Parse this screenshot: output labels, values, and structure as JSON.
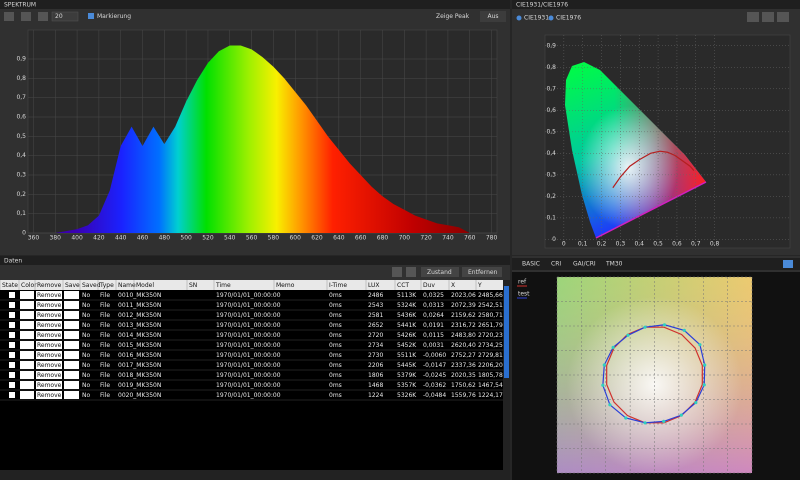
{
  "spectrum_panel": {
    "title": "SPEKTRUM",
    "count": "20",
    "marker": "Markierung",
    "peak_label": "Zeige Peak",
    "peak_value": "Aus"
  },
  "cie_panel": {
    "title": "CIE1931/CIE1976",
    "tabs": [
      "CIE1931",
      "CIE1976"
    ]
  },
  "data_panel": {
    "title": "Daten",
    "buttons": [
      "Zustand",
      "Entfernen"
    ],
    "table": {
      "columns": [
        "State",
        "Color",
        "Remove",
        "Save",
        "Saved",
        "Type",
        "Name",
        "Model",
        "SN",
        "Time",
        "Memo",
        "I-Time",
        "LUX",
        "CCT",
        "Duv",
        "X",
        "Y"
      ],
      "rows": [
        [
          "Remove",
          "No",
          "File",
          "0010_MK350N",
          "1970/01/01_00:00:00",
          "0ms",
          "2486",
          "5113K",
          "0,0325",
          "2023,06",
          "2485,66"
        ],
        [
          "Remove",
          "No",
          "File",
          "0011_MK350N",
          "1970/01/01_00:00:00",
          "0ms",
          "2543",
          "5324K",
          "0,0313",
          "2072,39",
          "2542,51"
        ],
        [
          "Remove",
          "No",
          "File",
          "0012_MK350N",
          "1970/01/01_00:00:00",
          "0ms",
          "2581",
          "5436K",
          "0,0264",
          "2159,62",
          "2580,71"
        ],
        [
          "Remove",
          "No",
          "File",
          "0013_MK350N",
          "1970/01/01_00:00:00",
          "0ms",
          "2652",
          "5441K",
          "0,0191",
          "2316,72",
          "2651,79"
        ],
        [
          "Remove",
          "No",
          "File",
          "0014_MK350N",
          "1970/01/01_00:00:00",
          "0ms",
          "2720",
          "5426K",
          "0,0115",
          "2483,80",
          "2720,23"
        ],
        [
          "Remove",
          "No",
          "File",
          "0015_MK350N",
          "1970/01/01_00:00:00",
          "0ms",
          "2734",
          "5452K",
          "0,0031",
          "2620,40",
          "2734,25"
        ],
        [
          "Remove",
          "No",
          "File",
          "0016_MK350N",
          "1970/01/01_00:00:00",
          "0ms",
          "2730",
          "5511K",
          "-0,0060",
          "2752,27",
          "2729,81"
        ],
        [
          "Remove",
          "No",
          "File",
          "0017_MK350N",
          "1970/01/01_00:00:00",
          "0ms",
          "2206",
          "5445K",
          "-0,0147",
          "2337,36",
          "2206,20"
        ],
        [
          "Remove",
          "No",
          "File",
          "0018_MK350N",
          "1970/01/01_00:00:00",
          "0ms",
          "1806",
          "5379K",
          "-0,0245",
          "2020,35",
          "1805,78"
        ],
        [
          "Remove",
          "No",
          "File",
          "0019_MK350N",
          "1970/01/01_00:00:00",
          "0ms",
          "1468",
          "5357K",
          "-0,0362",
          "1750,62",
          "1467,54"
        ],
        [
          "Remove",
          "No",
          "File",
          "0020_MK350N",
          "1970/01/01_00:00:00",
          "0ms",
          "1224",
          "5326K",
          "-0,0484",
          "1559,76",
          "1224,17"
        ]
      ]
    }
  },
  "color_panel": {
    "tabs": [
      "BASIC",
      "CRI",
      "GAI/CRI",
      "TM30"
    ]
  },
  "chart_data": [
    {
      "type": "area",
      "x": [
        380,
        390,
        400,
        410,
        420,
        430,
        440,
        450,
        460,
        470,
        480,
        490,
        500,
        510,
        520,
        530,
        540,
        550,
        560,
        570,
        580,
        590,
        600,
        610,
        620,
        630,
        640,
        650,
        660,
        670,
        680,
        690,
        700,
        710,
        720,
        730,
        740,
        750,
        760
      ],
      "values": [
        0.0,
        0.01,
        0.02,
        0.04,
        0.09,
        0.22,
        0.45,
        0.55,
        0.45,
        0.55,
        0.46,
        0.55,
        0.68,
        0.79,
        0.88,
        0.94,
        0.97,
        0.97,
        0.95,
        0.91,
        0.86,
        0.8,
        0.73,
        0.66,
        0.58,
        0.5,
        0.43,
        0.36,
        0.3,
        0.24,
        0.19,
        0.15,
        0.12,
        0.09,
        0.07,
        0.05,
        0.04,
        0.03,
        0.0
      ],
      "xlim": [
        355,
        785
      ],
      "ylim": [
        0,
        1.05
      ],
      "xticks": [
        360,
        380,
        400,
        420,
        440,
        460,
        480,
        500,
        520,
        540,
        560,
        580,
        600,
        620,
        640,
        660,
        680,
        700,
        720,
        740,
        760,
        780
      ],
      "yticks": [
        0,
        {
          "value": 0.1,
          "label": "0,1"
        },
        {
          "value": 0.2,
          "label": "0,2"
        },
        {
          "value": 0.3,
          "label": "0,3"
        },
        {
          "value": 0.4,
          "label": "0,4"
        },
        {
          "value": 0.5,
          "label": "0,5"
        },
        {
          "value": 0.6,
          "label": "0,6"
        },
        {
          "value": 0.7,
          "label": "0,7"
        },
        {
          "value": 0.8,
          "label": "0,8"
        },
        {
          "value": 0.9,
          "label": "0,9"
        }
      ],
      "grid": true
    },
    {
      "type": "line",
      "color": "#b51f1f",
      "x": [
        0.26,
        0.3,
        0.35,
        0.4,
        0.46,
        0.51,
        0.55,
        0.59,
        0.63,
        0.67,
        0.69
      ],
      "values": [
        0.24,
        0.29,
        0.34,
        0.37,
        0.4,
        0.41,
        0.405,
        0.39,
        0.365,
        0.34,
        0.32
      ],
      "xlim": [
        -0.1,
        1.2
      ],
      "ylim": [
        -0.04,
        0.95
      ],
      "xticks": [
        0,
        {
          "value": 0.1,
          "label": "0,1"
        },
        {
          "value": 0.2,
          "label": "0,2"
        },
        {
          "value": 0.3,
          "label": "0,3"
        },
        {
          "value": 0.4,
          "label": "0,4"
        },
        {
          "value": 0.5,
          "label": "0,5"
        },
        {
          "value": 0.6,
          "label": "0,6"
        },
        {
          "value": 0.7,
          "label": "0,7"
        },
        {
          "value": 0.8,
          "label": "0,8"
        }
      ],
      "yticks": [
        0,
        {
          "value": 0.1,
          "label": "0,1"
        },
        {
          "value": 0.2,
          "label": "0,2"
        },
        {
          "value": 0.3,
          "label": "0,3"
        },
        {
          "value": 0.4,
          "label": "0,4"
        },
        {
          "value": 0.5,
          "label": "0,5"
        },
        {
          "value": 0.6,
          "label": "0,6"
        },
        {
          "value": 0.7,
          "label": "0,7"
        },
        {
          "value": 0.8,
          "label": "0,8"
        },
        {
          "value": 0.9,
          "label": "0,9"
        }
      ],
      "grid": true
    },
    {
      "type": "polar",
      "series": [
        {
          "name": "ref",
          "color": "#d0312d",
          "values": [
            1,
            1,
            1,
            1,
            1,
            1,
            1,
            1,
            1,
            1,
            1,
            1,
            1,
            1,
            1,
            1
          ]
        },
        {
          "name": "test",
          "color": "#2a3fd8",
          "values": [
            1.05,
            1.12,
            1.1,
            1.05,
            1.0,
            0.98,
            1.02,
            1.05,
            1.08,
            1.1,
            1.06,
            1.0,
            0.97,
            0.99,
            1.02,
            1.04
          ]
        }
      ],
      "xlim": [
        -2,
        2
      ],
      "ylim": [
        -2,
        2
      ],
      "xticks": [
        -2,
        -1.5,
        -1,
        -0.5,
        0,
        0.5,
        1,
        1.5,
        2
      ],
      "yticks": [
        -2,
        -1.5,
        -1,
        -0.5,
        0,
        0.5,
        1,
        1.5,
        2
      ],
      "grid": true
    }
  ]
}
